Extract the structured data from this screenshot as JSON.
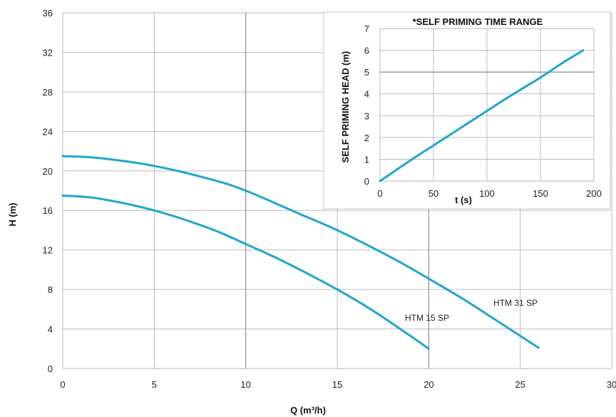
{
  "chart_data": [
    {
      "type": "line",
      "title": "",
      "xlabel": "Q (m³/h)",
      "ylabel": "H (m)",
      "xlim": [
        0,
        30
      ],
      "ylim": [
        0,
        36
      ],
      "xticks": [
        0,
        5,
        10,
        15,
        20,
        25,
        30
      ],
      "yticks": [
        0,
        4,
        8,
        12,
        16,
        20,
        24,
        28,
        32,
        36
      ],
      "grid": true,
      "line_color": "#1fa6cf",
      "series": [
        {
          "name": "HTM 31 SP",
          "x": [
            0,
            2,
            5,
            8,
            10,
            13,
            15,
            18,
            20,
            22,
            24,
            26
          ],
          "y": [
            21.5,
            21.3,
            20.5,
            19.2,
            18,
            15.6,
            14,
            11.2,
            9.1,
            6.9,
            4.5,
            2.1
          ]
        },
        {
          "name": "HTM 15 SP",
          "x": [
            0,
            2,
            5,
            8,
            10,
            12,
            15,
            17,
            19,
            20
          ],
          "y": [
            17.5,
            17.2,
            16,
            14.2,
            12.6,
            10.9,
            8,
            5.8,
            3.3,
            2
          ]
        }
      ]
    },
    {
      "type": "line",
      "title": "*SELF PRIMING TIME RANGE",
      "xlabel": "t (s)",
      "ylabel": "SELF PRIMING HEAD (m)",
      "xlim": [
        0,
        200
      ],
      "ylim": [
        0,
        7
      ],
      "xticks": [
        0,
        50,
        100,
        150,
        200
      ],
      "yticks": [
        0,
        1,
        2,
        3,
        4,
        5,
        6,
        7
      ],
      "grid": true,
      "line_color": "#1fa6cf",
      "series": [
        {
          "x": [
            0,
            30,
            60,
            90,
            120,
            150,
            170,
            190
          ],
          "y": [
            0,
            1,
            1.95,
            2.9,
            3.85,
            4.75,
            5.4,
            6
          ]
        }
      ]
    }
  ]
}
